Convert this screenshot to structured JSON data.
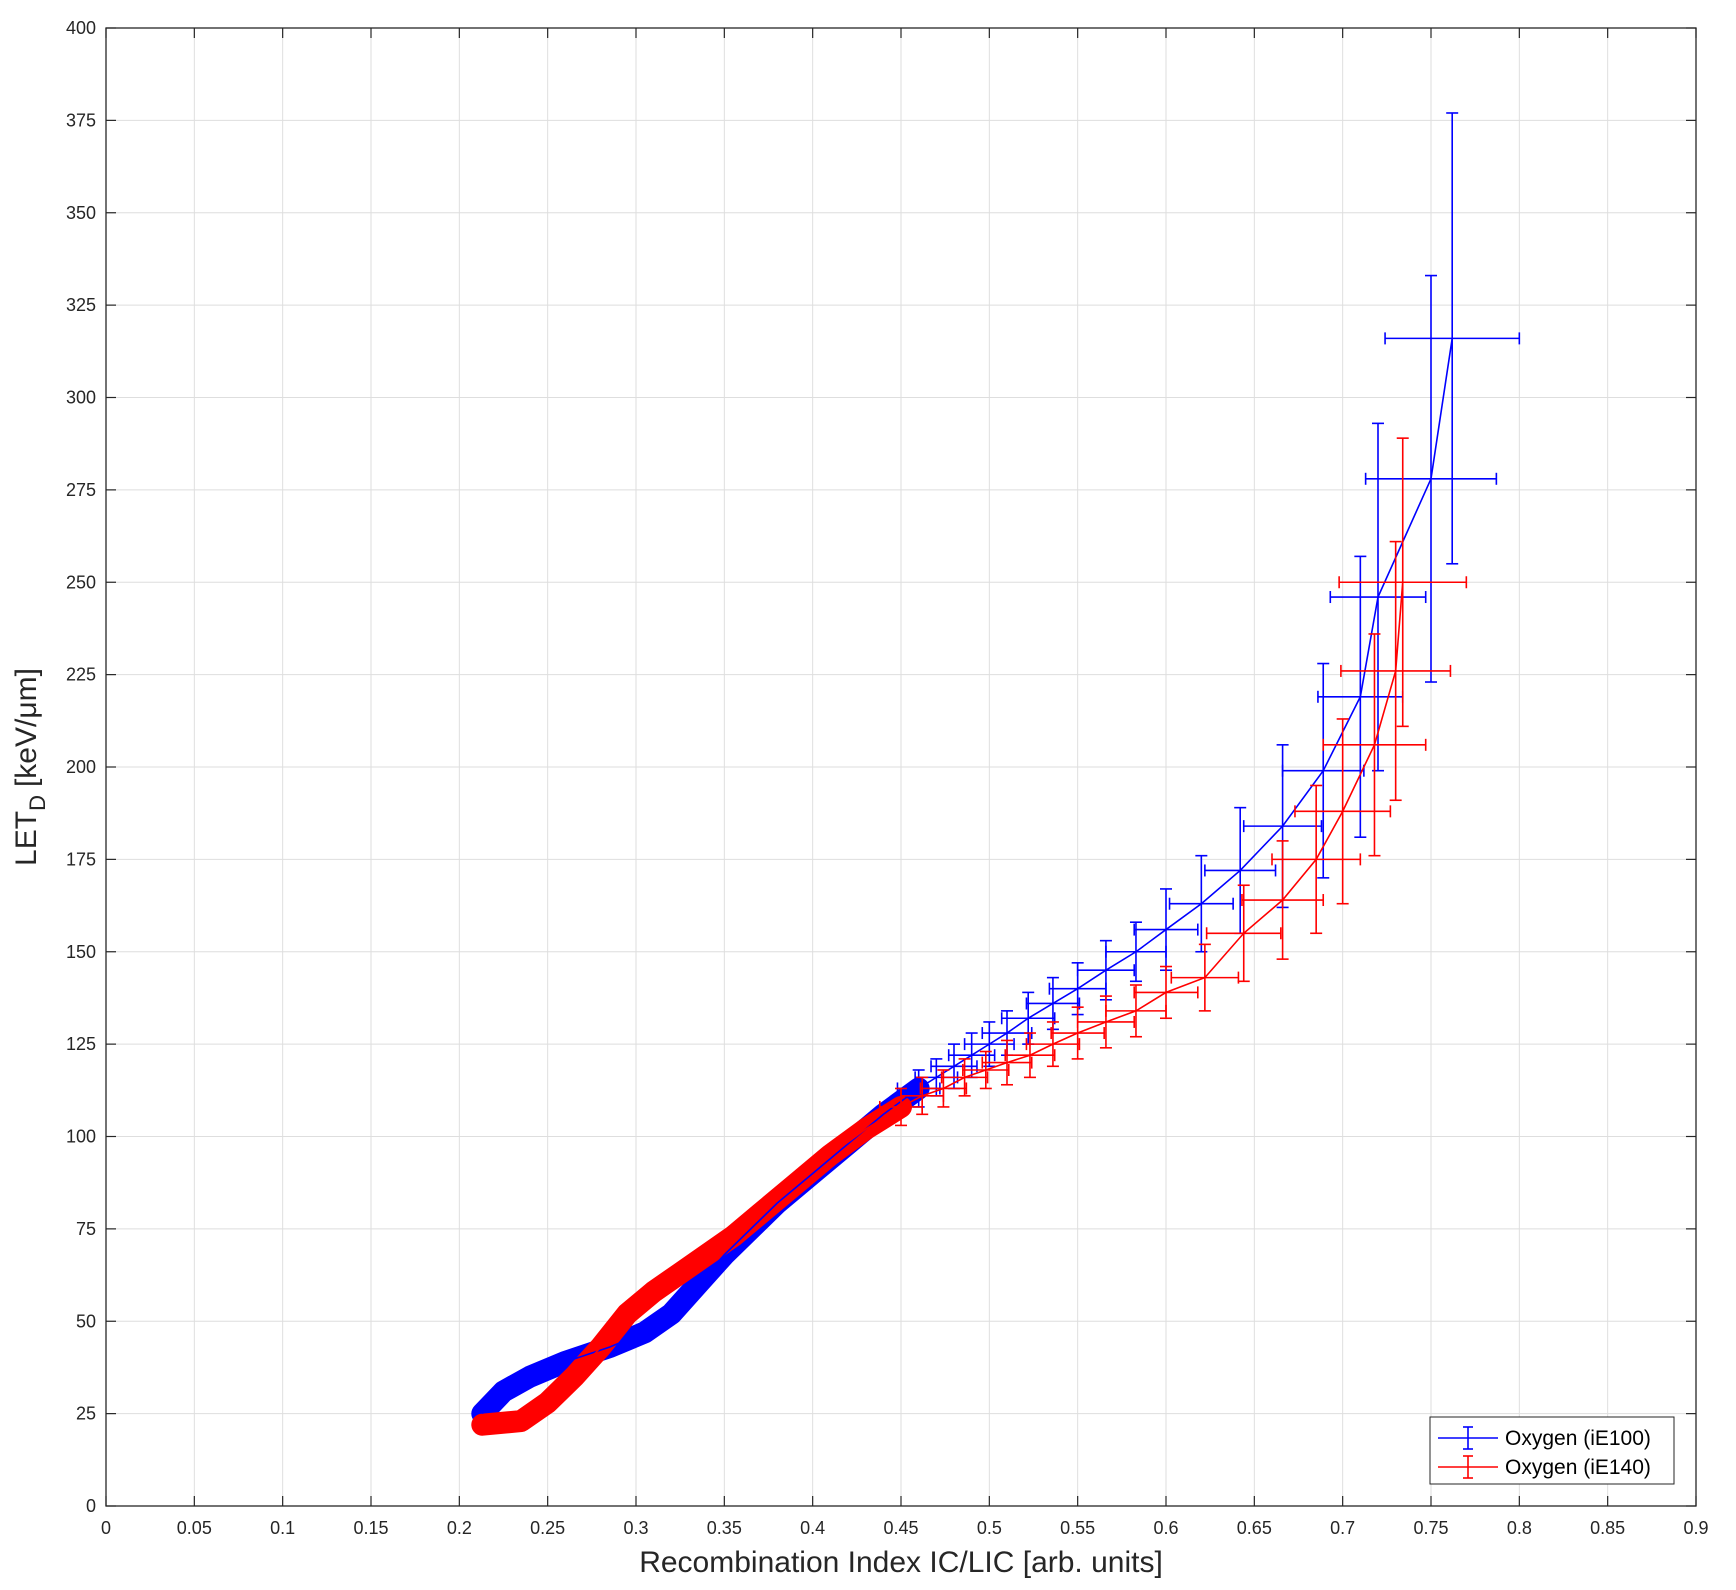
{
  "chart_data": {
    "type": "scatter",
    "xlabel": "Recombination Index IC/LIC [arb. units]",
    "ylabel_main": "LET",
    "ylabel_sub": "D",
    "ylabel_unit": "[keV/μm]",
    "xlim": [
      0,
      0.9
    ],
    "ylim": [
      0,
      400
    ],
    "xticks": [
      0,
      0.05,
      0.1,
      0.15,
      0.2,
      0.25,
      0.3,
      0.35,
      0.4,
      0.45,
      0.5,
      0.55,
      0.6,
      0.65,
      0.7,
      0.75,
      0.8,
      0.85,
      0.9
    ],
    "xtick_labels": [
      "0",
      "0.05",
      "0.1",
      "0.15",
      "0.2",
      "0.25",
      "0.3",
      "0.35",
      "0.4",
      "0.45",
      "0.5",
      "0.55",
      "0.6",
      "0.65",
      "0.7",
      "0.75",
      "0.8",
      "0.85",
      "0.9"
    ],
    "yticks": [
      0,
      25,
      50,
      75,
      100,
      125,
      150,
      175,
      200,
      225,
      250,
      275,
      300,
      325,
      350,
      375,
      400
    ],
    "ytick_labels": [
      "0",
      "25",
      "50",
      "75",
      "100",
      "125",
      "150",
      "175",
      "200",
      "225",
      "250",
      "275",
      "300",
      "325",
      "350",
      "375",
      "400"
    ],
    "grid": true,
    "legend_position": "bottom-right",
    "series": [
      {
        "name": "Oxygen (iE100)",
        "color": "#0000ff",
        "dense_band": [
          [
            0.213,
            25
          ],
          [
            0.225,
            31
          ],
          [
            0.24,
            35
          ],
          [
            0.26,
            39
          ],
          [
            0.285,
            43
          ],
          [
            0.305,
            47
          ],
          [
            0.32,
            52
          ],
          [
            0.335,
            60
          ],
          [
            0.35,
            68
          ],
          [
            0.365,
            75
          ],
          [
            0.38,
            82
          ],
          [
            0.4,
            90
          ],
          [
            0.42,
            98
          ],
          [
            0.44,
            106
          ],
          [
            0.46,
            113
          ]
        ],
        "points": [
          {
            "x": 0.46,
            "y": 113,
            "xerr": 0.012,
            "yerr": 5
          },
          {
            "x": 0.47,
            "y": 116,
            "xerr": 0.012,
            "yerr": 5
          },
          {
            "x": 0.48,
            "y": 119,
            "xerr": 0.013,
            "yerr": 6
          },
          {
            "x": 0.49,
            "y": 122,
            "xerr": 0.013,
            "yerr": 6
          },
          {
            "x": 0.5,
            "y": 125,
            "xerr": 0.014,
            "yerr": 6
          },
          {
            "x": 0.51,
            "y": 128,
            "xerr": 0.014,
            "yerr": 6
          },
          {
            "x": 0.522,
            "y": 132,
            "xerr": 0.015,
            "yerr": 7
          },
          {
            "x": 0.536,
            "y": 136,
            "xerr": 0.015,
            "yerr": 7
          },
          {
            "x": 0.55,
            "y": 140,
            "xerr": 0.016,
            "yerr": 7
          },
          {
            "x": 0.566,
            "y": 145,
            "xerr": 0.016,
            "yerr": 8
          },
          {
            "x": 0.583,
            "y": 150,
            "xerr": 0.017,
            "yerr": 8
          },
          {
            "x": 0.6,
            "y": 156,
            "xerr": 0.018,
            "yerr": 11
          },
          {
            "x": 0.62,
            "y": 163,
            "xerr": 0.018,
            "yerr": 13
          },
          {
            "x": 0.642,
            "y": 172,
            "xerr": 0.02,
            "yerr": 17
          },
          {
            "x": 0.666,
            "y": 184,
            "xerr": 0.022,
            "yerr": 22
          },
          {
            "x": 0.689,
            "y": 199,
            "xerr": 0.023,
            "yerr": 29
          },
          {
            "x": 0.71,
            "y": 219,
            "xerr": 0.024,
            "yerr": 38
          },
          {
            "x": 0.72,
            "y": 246,
            "xerr": 0.027,
            "yerr": 47
          },
          {
            "x": 0.75,
            "y": 278,
            "xerr": 0.037,
            "yerr": 55
          },
          {
            "x": 0.762,
            "y": 316,
            "xerr": 0.038,
            "yerr": 61
          }
        ]
      },
      {
        "name": "Oxygen (iE140)",
        "color": "#ff0000",
        "dense_band": [
          [
            0.213,
            22
          ],
          [
            0.235,
            23
          ],
          [
            0.25,
            28
          ],
          [
            0.265,
            35
          ],
          [
            0.28,
            43
          ],
          [
            0.295,
            52
          ],
          [
            0.31,
            58
          ],
          [
            0.325,
            63
          ],
          [
            0.34,
            68
          ],
          [
            0.355,
            73
          ],
          [
            0.37,
            79
          ],
          [
            0.39,
            87
          ],
          [
            0.41,
            95
          ],
          [
            0.43,
            102
          ],
          [
            0.45,
            108
          ]
        ],
        "points": [
          {
            "x": 0.45,
            "y": 108,
            "xerr": 0.012,
            "yerr": 5
          },
          {
            "x": 0.462,
            "y": 111,
            "xerr": 0.012,
            "yerr": 5
          },
          {
            "x": 0.474,
            "y": 113,
            "xerr": 0.013,
            "yerr": 5
          },
          {
            "x": 0.486,
            "y": 116,
            "xerr": 0.013,
            "yerr": 5
          },
          {
            "x": 0.498,
            "y": 118,
            "xerr": 0.013,
            "yerr": 5
          },
          {
            "x": 0.51,
            "y": 120,
            "xerr": 0.014,
            "yerr": 6
          },
          {
            "x": 0.523,
            "y": 122,
            "xerr": 0.014,
            "yerr": 6
          },
          {
            "x": 0.536,
            "y": 125,
            "xerr": 0.015,
            "yerr": 6
          },
          {
            "x": 0.55,
            "y": 128,
            "xerr": 0.015,
            "yerr": 7
          },
          {
            "x": 0.566,
            "y": 131,
            "xerr": 0.016,
            "yerr": 7
          },
          {
            "x": 0.583,
            "y": 134,
            "xerr": 0.017,
            "yerr": 7
          },
          {
            "x": 0.6,
            "y": 139,
            "xerr": 0.018,
            "yerr": 7
          },
          {
            "x": 0.622,
            "y": 143,
            "xerr": 0.019,
            "yerr": 9
          },
          {
            "x": 0.644,
            "y": 155,
            "xerr": 0.021,
            "yerr": 13
          },
          {
            "x": 0.666,
            "y": 164,
            "xerr": 0.023,
            "yerr": 16
          },
          {
            "x": 0.685,
            "y": 175,
            "xerr": 0.025,
            "yerr": 20
          },
          {
            "x": 0.7,
            "y": 188,
            "xerr": 0.027,
            "yerr": 25
          },
          {
            "x": 0.718,
            "y": 206,
            "xerr": 0.029,
            "yerr": 30
          },
          {
            "x": 0.73,
            "y": 226,
            "xerr": 0.031,
            "yerr": 35
          },
          {
            "x": 0.734,
            "y": 250,
            "xerr": 0.036,
            "yerr": 39
          }
        ]
      }
    ]
  }
}
